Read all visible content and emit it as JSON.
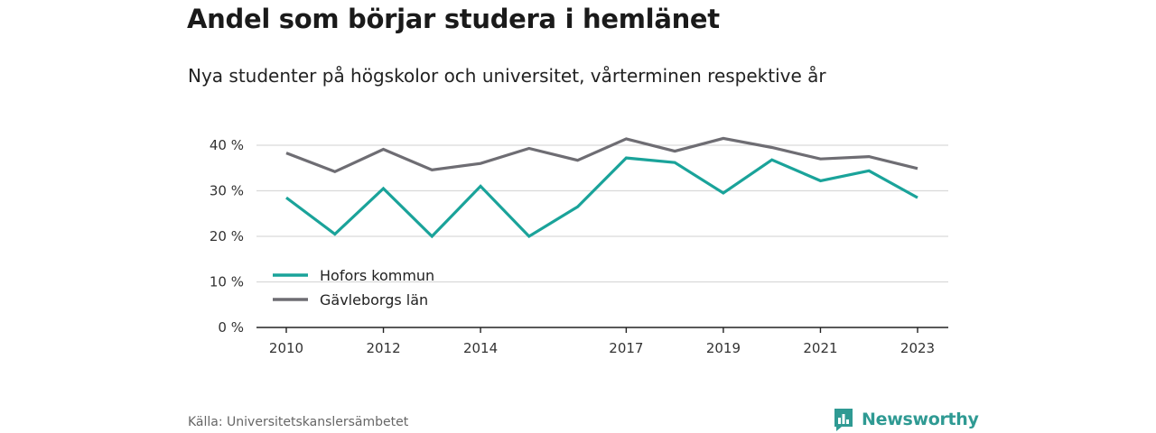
{
  "title": "Andel som börjar studera i hemlänet",
  "subtitle": "Nya studenter på högskolor och universitet, vårterminen respektive år",
  "source": "Källa: Universitetskanslersämbetet",
  "brand": {
    "name": "Newsworthy",
    "color": "#2f9a93"
  },
  "chart_data": {
    "type": "line",
    "title": "Andel som börjar studera i hemlänet",
    "subtitle": "Nya studenter på högskolor och universitet, vårterminen respektive år",
    "x": [
      2010,
      2011,
      2012,
      2013,
      2014,
      2015,
      2016,
      2017,
      2018,
      2019,
      2020,
      2021,
      2022,
      2023
    ],
    "x_ticks": [
      2010,
      2012,
      2014,
      2017,
      2019,
      2021,
      2023
    ],
    "ylim": [
      0,
      40
    ],
    "y_ticks": [
      0,
      10,
      20,
      30,
      40
    ],
    "y_tick_labels": [
      "0 %",
      "10 %",
      "20 %",
      "30 %",
      "40 %"
    ],
    "grid": true,
    "legend_position": "bottom-left",
    "series": [
      {
        "name": "Hofors kommun",
        "color": "#1aa39a",
        "values": [
          28.5,
          20.5,
          30.5,
          20.0,
          31.0,
          20.0,
          26.5,
          37.2,
          36.2,
          29.5,
          36.8,
          32.2,
          34.4,
          28.5
        ]
      },
      {
        "name": "Gävleborgs län",
        "color": "#6e6d73",
        "values": [
          38.3,
          34.2,
          39.1,
          34.6,
          36.0,
          39.3,
          36.7,
          41.4,
          38.7,
          41.5,
          39.5,
          37.0,
          37.5,
          34.9
        ]
      }
    ]
  }
}
